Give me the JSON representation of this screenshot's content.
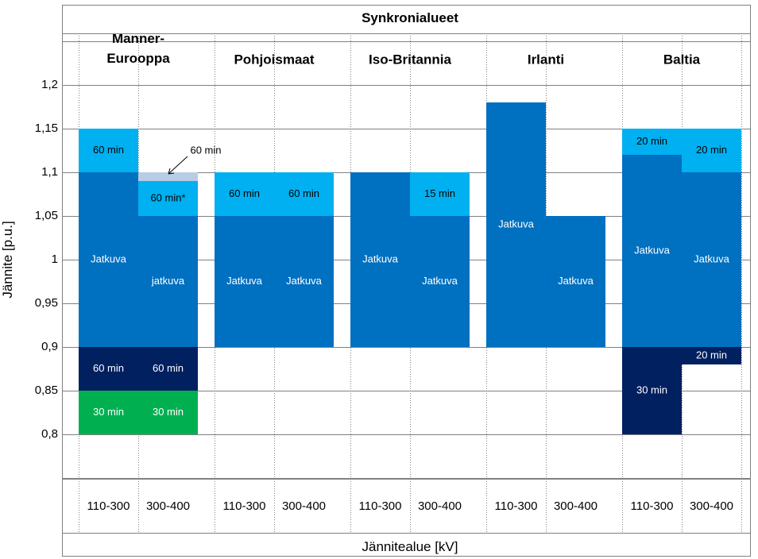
{
  "chart_data": {
    "type": "bar",
    "title": "Synkronialueet",
    "xlabel": "Jännitealue [kV]",
    "ylabel": "Jännite [p.u.]",
    "ylim": [
      0.75,
      1.25
    ],
    "yticks": [
      {
        "value": 0.8,
        "label": "0,8"
      },
      {
        "value": 0.85,
        "label": "0,85"
      },
      {
        "value": 0.9,
        "label": "0,9"
      },
      {
        "value": 0.95,
        "label": "0,95"
      },
      {
        "value": 1.0,
        "label": "1"
      },
      {
        "value": 1.05,
        "label": "1,05"
      },
      {
        "value": 1.1,
        "label": "1,1"
      },
      {
        "value": 1.15,
        "label": "1,15"
      },
      {
        "value": 1.2,
        "label": "1,2"
      }
    ],
    "colors": {
      "continuous": "#0070c0",
      "time_limited": "#00b0f0",
      "low_limited": "#002060",
      "low_short": "#00b050",
      "tolerance": "#b8cce4",
      "grid": "#808080"
    },
    "regions": [
      {
        "name": "Manner-\nEurooppa",
        "lines": [
          "Manner-",
          "Eurooppa"
        ],
        "columns": [
          {
            "range": "110-300",
            "segments": [
              {
                "from": 1.1,
                "to": 1.15,
                "kind": "time_limited",
                "label": "60 min"
              },
              {
                "from": 0.9,
                "to": 1.1,
                "kind": "continuous",
                "label": "Jatkuva"
              },
              {
                "from": 0.85,
                "to": 0.9,
                "kind": "low_limited",
                "label": "60 min"
              },
              {
                "from": 0.8,
                "to": 0.85,
                "kind": "low_short",
                "label": "30 min"
              }
            ]
          },
          {
            "range": "300-400",
            "segments": [
              {
                "from": 1.09,
                "to": 1.1,
                "kind": "tolerance",
                "label": "60 min",
                "callout": true
              },
              {
                "from": 1.05,
                "to": 1.09,
                "kind": "time_limited",
                "label": "60 min*"
              },
              {
                "from": 0.9,
                "to": 1.05,
                "kind": "continuous",
                "label": "jatkuva"
              },
              {
                "from": 0.85,
                "to": 0.9,
                "kind": "low_limited",
                "label": "60 min"
              },
              {
                "from": 0.8,
                "to": 0.85,
                "kind": "low_short",
                "label": "30 min"
              }
            ]
          }
        ]
      },
      {
        "name": "Pohjoismaat",
        "lines": [
          "Pohjoismaat"
        ],
        "columns": [
          {
            "range": "110-300",
            "segments": [
              {
                "from": 1.05,
                "to": 1.1,
                "kind": "time_limited",
                "label": "60 min"
              },
              {
                "from": 0.9,
                "to": 1.05,
                "kind": "continuous",
                "label": "Jatkuva"
              }
            ]
          },
          {
            "range": "300-400",
            "segments": [
              {
                "from": 1.05,
                "to": 1.1,
                "kind": "time_limited",
                "label": "60 min"
              },
              {
                "from": 0.9,
                "to": 1.05,
                "kind": "continuous",
                "label": "Jatkuva"
              }
            ]
          }
        ]
      },
      {
        "name": "Iso-Britannia",
        "lines": [
          "Iso-Britannia"
        ],
        "columns": [
          {
            "range": "110-300",
            "segments": [
              {
                "from": 0.9,
                "to": 1.1,
                "kind": "continuous",
                "label": "Jatkuva"
              }
            ]
          },
          {
            "range": "300-400",
            "segments": [
              {
                "from": 1.05,
                "to": 1.1,
                "kind": "time_limited",
                "label": "15 min"
              },
              {
                "from": 0.9,
                "to": 1.05,
                "kind": "continuous",
                "label": "Jatkuva"
              }
            ]
          }
        ]
      },
      {
        "name": "Irlanti",
        "lines": [
          "Irlanti"
        ],
        "columns": [
          {
            "range": "110-300",
            "segments": [
              {
                "from": 0.9,
                "to": 1.18,
                "kind": "continuous",
                "label": "Jatkuva"
              }
            ]
          },
          {
            "range": "300-400",
            "segments": [
              {
                "from": 0.9,
                "to": 1.05,
                "kind": "continuous",
                "label": "Jatkuva"
              }
            ]
          }
        ]
      },
      {
        "name": "Baltia",
        "lines": [
          "Baltia"
        ],
        "columns": [
          {
            "range": "110-300",
            "segments": [
              {
                "from": 1.12,
                "to": 1.15,
                "kind": "time_limited",
                "label": "20 min"
              },
              {
                "from": 0.9,
                "to": 1.12,
                "kind": "continuous",
                "label": "Jatkuva"
              },
              {
                "from": 0.8,
                "to": 0.9,
                "kind": "low_limited",
                "label": "30 min"
              }
            ]
          },
          {
            "range": "300-400",
            "segments": [
              {
                "from": 1.1,
                "to": 1.15,
                "kind": "time_limited",
                "label": "20 min"
              },
              {
                "from": 0.9,
                "to": 1.1,
                "kind": "continuous",
                "label": "Jatkuva"
              },
              {
                "from": 0.88,
                "to": 0.9,
                "kind": "low_limited",
                "label": "20 min"
              }
            ]
          }
        ]
      }
    ]
  }
}
